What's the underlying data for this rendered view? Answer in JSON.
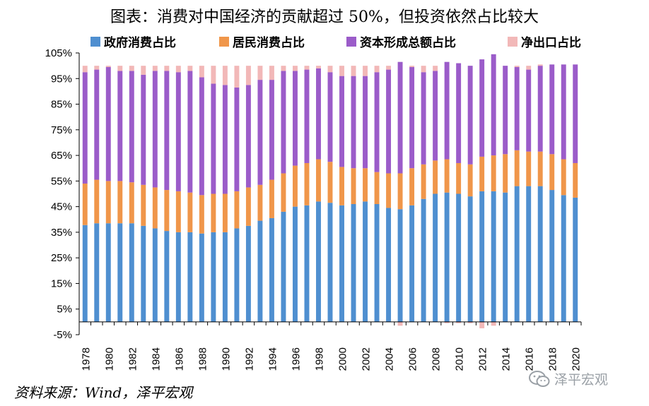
{
  "title": "图表：消费对中国经济的贡献超过 50%，但投资依然占比较大",
  "source": "资料来源：Wind，泽平宏观",
  "watermark": "泽平宏观",
  "colors": {
    "gov": "#4f8fd0",
    "res": "#f0964a",
    "inv": "#9b5cc9",
    "net": "#f2b8b8"
  },
  "chart_data": {
    "type": "bar",
    "stacked": true,
    "x": [
      1978,
      1979,
      1980,
      1981,
      1982,
      1983,
      1984,
      1985,
      1986,
      1987,
      1988,
      1989,
      1990,
      1991,
      1992,
      1993,
      1994,
      1995,
      1996,
      1997,
      1998,
      1999,
      2000,
      2001,
      2002,
      2003,
      2004,
      2005,
      2006,
      2007,
      2008,
      2009,
      2010,
      2011,
      2012,
      2013,
      2014,
      2015,
      2016,
      2017,
      2018,
      2019,
      2020
    ],
    "x_tick_labels": [
      "1978",
      "1980",
      "1982",
      "1984",
      "1986",
      "1988",
      "1990",
      "1992",
      "1994",
      "1996",
      "1998",
      "2000",
      "2002",
      "2004",
      "2006",
      "2008",
      "2010",
      "2012",
      "2014",
      "2016",
      "2018",
      "2020"
    ],
    "series": [
      {
        "name": "政府消费占比",
        "color": "#4f8fd0",
        "values": [
          37.8,
          38.5,
          38.5,
          38.5,
          38.5,
          37.5,
          36.5,
          35.5,
          35.0,
          35.0,
          34.5,
          35.0,
          35.0,
          36.5,
          37.5,
          39.5,
          40.5,
          43.0,
          45.0,
          45.5,
          47.0,
          46.5,
          45.5,
          46.0,
          47.0,
          46.0,
          44.5,
          44.0,
          45.5,
          48.0,
          50.0,
          50.5,
          50.0,
          49.0,
          51.0,
          51.0,
          50.5,
          53.0,
          53.0,
          53.0,
          51.5,
          49.5,
          48.5
        ]
      },
      {
        "name": "居民消费占比",
        "color": "#f0964a",
        "values": [
          16.2,
          17.0,
          16.5,
          16.5,
          16.0,
          16.0,
          16.0,
          16.0,
          16.0,
          15.5,
          15.0,
          15.0,
          15.0,
          14.5,
          15.0,
          14.0,
          15.0,
          15.0,
          16.0,
          16.5,
          16.5,
          16.0,
          15.0,
          14.0,
          13.0,
          12.5,
          13.5,
          14.0,
          14.5,
          13.5,
          13.0,
          13.0,
          12.0,
          12.5,
          13.5,
          14.0,
          15.0,
          14.0,
          13.5,
          13.5,
          14.0,
          14.0,
          13.5
        ]
      },
      {
        "name": "资本形成总额占比",
        "color": "#9b5cc9",
        "values": [
          43.5,
          43.0,
          44.5,
          43.0,
          43.5,
          43.0,
          45.5,
          46.5,
          46.5,
          47.5,
          46.0,
          43.0,
          42.5,
          40.5,
          40.0,
          41.0,
          39.0,
          40.0,
          37.0,
          36.5,
          35.5,
          35.0,
          35.5,
          36.0,
          36.0,
          39.0,
          40.5,
          43.5,
          39.5,
          36.0,
          35.0,
          38.0,
          39.0,
          38.5,
          38.0,
          39.5,
          34.5,
          32.5,
          32.0,
          33.5,
          35.0,
          37.0,
          38.5
        ]
      },
      {
        "name": "净出口占比",
        "color": "#f2b8b8",
        "values": [
          2.5,
          1.5,
          0.5,
          2.0,
          2.0,
          3.5,
          2.0,
          2.0,
          2.5,
          2.0,
          4.5,
          7.0,
          7.5,
          8.5,
          7.5,
          5.5,
          5.5,
          2.0,
          2.0,
          1.5,
          1.0,
          2.5,
          4.0,
          4.0,
          4.0,
          2.5,
          1.5,
          -1.5,
          0.5,
          2.5,
          2.0,
          -0.5,
          -0.5,
          -0.5,
          -2.5,
          -1.5,
          0.0,
          0.5,
          1.5,
          0.5,
          0.0,
          0.0,
          0.0
        ]
      }
    ],
    "y_ticks": [
      "-5%",
      "5%",
      "15%",
      "25%",
      "35%",
      "45%",
      "55%",
      "65%",
      "75%",
      "85%",
      "95%",
      "105%"
    ],
    "ylim": [
      -5,
      105
    ],
    "legend_position": "top",
    "grid": false
  }
}
